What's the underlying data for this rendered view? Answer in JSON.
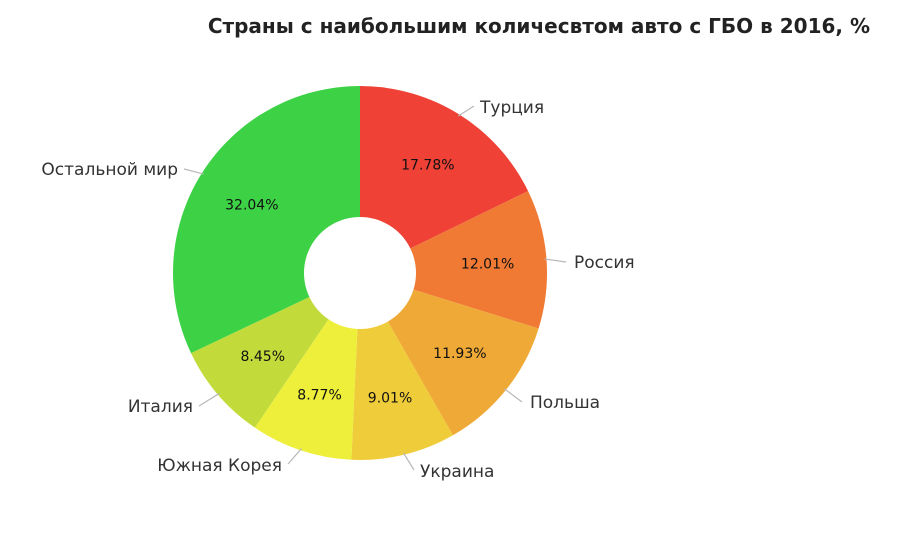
{
  "chart_data": {
    "type": "pie",
    "title": "Страны с наибольшим количесвтом авто с ГБО в 2016, %",
    "donut": true,
    "legend": "labels-outside",
    "categories": [
      "Турция",
      "Россия",
      "Польша",
      "Украина",
      "Южная Корея",
      "Италия",
      "Остальной мир"
    ],
    "values": [
      17.78,
      12.01,
      11.93,
      9.01,
      8.77,
      8.45,
      32.04
    ],
    "value_labels": [
      "17.78%",
      "12.01%",
      "11.93%",
      "9.01%",
      "8.77%",
      "8.45%",
      "32.04%"
    ],
    "colors": [
      "#ef4136",
      "#f07a34",
      "#efa936",
      "#efcc3a",
      "#edef3a",
      "#c2db3b",
      "#3dd246"
    ]
  }
}
